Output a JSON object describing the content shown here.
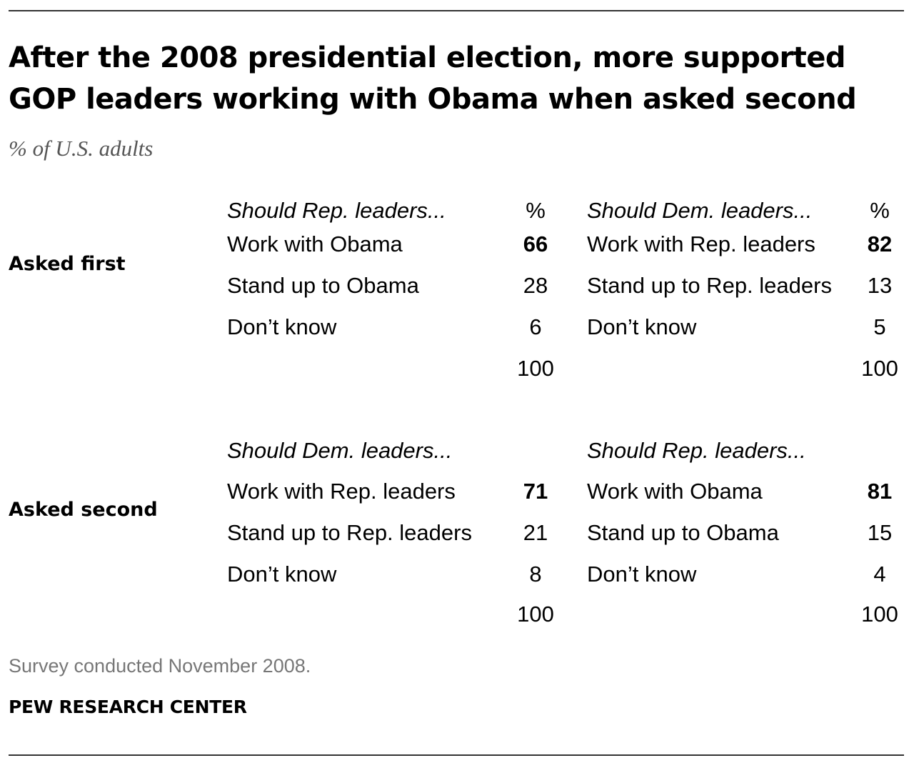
{
  "title": "After the 2008 presidential election, more supported GOP leaders working with Obama when asked second",
  "subtitle": "% of U.S. adults",
  "pct_label": "%",
  "chart_data": {
    "type": "table",
    "title": "After the 2008 presidential election, more supported GOP leaders working with Obama when asked second",
    "subtitle": "% of U.S. adults",
    "panels": [
      {
        "row_label": "Asked first",
        "left": {
          "question": "Should Rep. leaders...",
          "items": [
            {
              "label": "Work with Obama",
              "value": 66,
              "bold": true
            },
            {
              "label": "Stand up to Obama",
              "value": 28
            },
            {
              "label": "Don’t know",
              "value": 6
            }
          ],
          "total": 100
        },
        "right": {
          "question": "Should Dem. leaders...",
          "items": [
            {
              "label": "Work with Rep. leaders",
              "value": 82,
              "bold": true
            },
            {
              "label": "Stand up to Rep. leaders",
              "value": 13
            },
            {
              "label": "Don’t know",
              "value": 5
            }
          ],
          "total": 100
        }
      },
      {
        "row_label": "Asked second",
        "left": {
          "question": "Should Dem. leaders...",
          "items": [
            {
              "label": "Work with Rep. leaders",
              "value": 71,
              "bold": true
            },
            {
              "label": "Stand up to Rep. leaders",
              "value": 21
            },
            {
              "label": "Don’t know",
              "value": 8
            }
          ],
          "total": 100
        },
        "right": {
          "question": "Should Rep. leaders...",
          "items": [
            {
              "label": "Work with Obama",
              "value": 81,
              "bold": true
            },
            {
              "label": "Stand up to Obama",
              "value": 15
            },
            {
              "label": "Don’t know",
              "value": 4
            }
          ],
          "total": 100
        }
      }
    ]
  },
  "note": "Survey conducted November 2008.",
  "source": "PEW RESEARCH CENTER"
}
